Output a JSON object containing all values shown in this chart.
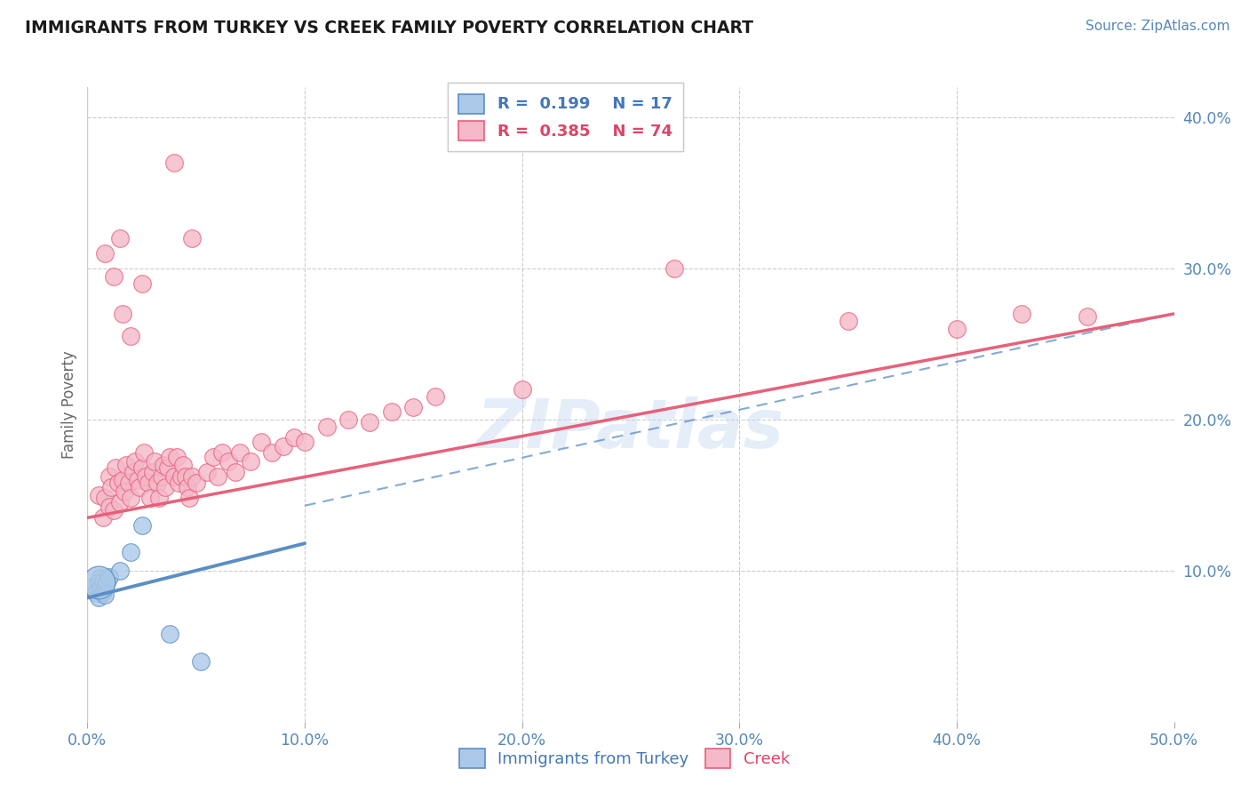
{
  "title": "IMMIGRANTS FROM TURKEY VS CREEK FAMILY POVERTY CORRELATION CHART",
  "source": "Source: ZipAtlas.com",
  "ylabel": "Family Poverty",
  "xlim": [
    0.0,
    0.5
  ],
  "ylim": [
    0.0,
    0.42
  ],
  "xticks": [
    0.0,
    0.1,
    0.2,
    0.3,
    0.4,
    0.5
  ],
  "yticks": [
    0.1,
    0.2,
    0.3,
    0.4
  ],
  "xticklabels": [
    "0.0%",
    "10.0%",
    "20.0%",
    "30.0%",
    "40.0%",
    "50.0%"
  ],
  "yticklabels": [
    "10.0%",
    "20.0%",
    "30.0%",
    "40.0%"
  ],
  "blue_color": "#5b8ec4",
  "pink_color": "#e8607a",
  "blue_fill": "#aac8e8",
  "pink_fill": "#f4b8c8",
  "watermark": "ZIPatlas",
  "blue_line": [
    [
      0.0,
      0.082
    ],
    [
      0.1,
      0.118
    ]
  ],
  "pink_line": [
    [
      0.0,
      0.135
    ],
    [
      0.5,
      0.27
    ]
  ],
  "dash_line": [
    [
      0.1,
      0.143
    ],
    [
      0.5,
      0.27
    ]
  ],
  "blue_scatter": [
    [
      0.003,
      0.09
    ],
    [
      0.004,
      0.085
    ],
    [
      0.005,
      0.082
    ],
    [
      0.005,
      0.092
    ],
    [
      0.006,
      0.088
    ],
    [
      0.006,
      0.095
    ],
    [
      0.007,
      0.086
    ],
    [
      0.007,
      0.093
    ],
    [
      0.008,
      0.09
    ],
    [
      0.008,
      0.084
    ],
    [
      0.009,
      0.092
    ],
    [
      0.01,
      0.096
    ],
    [
      0.015,
      0.1
    ],
    [
      0.02,
      0.112
    ],
    [
      0.025,
      0.13
    ],
    [
      0.038,
      0.058
    ],
    [
      0.052,
      0.04
    ]
  ],
  "blue_large": [
    [
      0.005,
      0.092
    ]
  ],
  "pink_scatter": [
    [
      0.005,
      0.15
    ],
    [
      0.007,
      0.135
    ],
    [
      0.008,
      0.148
    ],
    [
      0.01,
      0.142
    ],
    [
      0.01,
      0.162
    ],
    [
      0.011,
      0.155
    ],
    [
      0.012,
      0.14
    ],
    [
      0.013,
      0.168
    ],
    [
      0.014,
      0.158
    ],
    [
      0.015,
      0.145
    ],
    [
      0.016,
      0.16
    ],
    [
      0.017,
      0.152
    ],
    [
      0.018,
      0.17
    ],
    [
      0.019,
      0.158
    ],
    [
      0.02,
      0.148
    ],
    [
      0.021,
      0.165
    ],
    [
      0.022,
      0.172
    ],
    [
      0.023,
      0.16
    ],
    [
      0.024,
      0.155
    ],
    [
      0.025,
      0.168
    ],
    [
      0.026,
      0.178
    ],
    [
      0.027,
      0.162
    ],
    [
      0.028,
      0.158
    ],
    [
      0.029,
      0.148
    ],
    [
      0.03,
      0.165
    ],
    [
      0.031,
      0.172
    ],
    [
      0.032,
      0.158
    ],
    [
      0.033,
      0.148
    ],
    [
      0.034,
      0.162
    ],
    [
      0.035,
      0.17
    ],
    [
      0.036,
      0.155
    ],
    [
      0.037,
      0.168
    ],
    [
      0.038,
      0.175
    ],
    [
      0.04,
      0.162
    ],
    [
      0.041,
      0.175
    ],
    [
      0.042,
      0.158
    ],
    [
      0.043,
      0.162
    ],
    [
      0.044,
      0.17
    ],
    [
      0.045,
      0.162
    ],
    [
      0.046,
      0.155
    ],
    [
      0.047,
      0.148
    ],
    [
      0.048,
      0.162
    ],
    [
      0.05,
      0.158
    ],
    [
      0.055,
      0.165
    ],
    [
      0.058,
      0.175
    ],
    [
      0.06,
      0.162
    ],
    [
      0.062,
      0.178
    ],
    [
      0.065,
      0.172
    ],
    [
      0.068,
      0.165
    ],
    [
      0.07,
      0.178
    ],
    [
      0.075,
      0.172
    ],
    [
      0.08,
      0.185
    ],
    [
      0.085,
      0.178
    ],
    [
      0.09,
      0.182
    ],
    [
      0.095,
      0.188
    ],
    [
      0.1,
      0.185
    ],
    [
      0.11,
      0.195
    ],
    [
      0.12,
      0.2
    ],
    [
      0.13,
      0.198
    ],
    [
      0.14,
      0.205
    ],
    [
      0.15,
      0.208
    ],
    [
      0.16,
      0.215
    ],
    [
      0.2,
      0.22
    ],
    [
      0.016,
      0.27
    ],
    [
      0.02,
      0.255
    ],
    [
      0.025,
      0.29
    ],
    [
      0.04,
      0.37
    ],
    [
      0.048,
      0.32
    ],
    [
      0.008,
      0.31
    ],
    [
      0.012,
      0.295
    ],
    [
      0.015,
      0.32
    ],
    [
      0.27,
      0.3
    ],
    [
      0.35,
      0.265
    ],
    [
      0.4,
      0.26
    ],
    [
      0.43,
      0.27
    ],
    [
      0.46,
      0.268
    ]
  ]
}
